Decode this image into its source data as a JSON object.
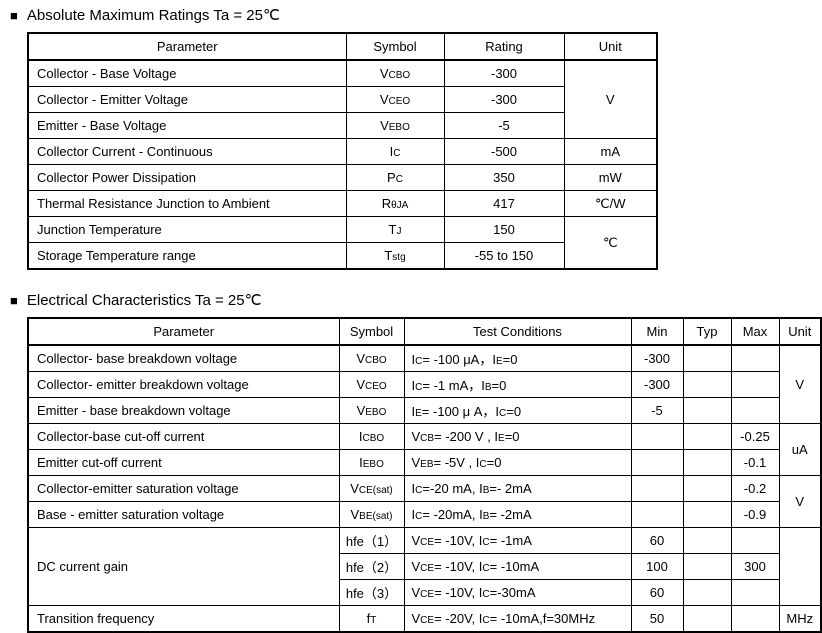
{
  "sections": {
    "abs": {
      "marker": "■",
      "title": "Absolute Maximum Ratings Ta = 25℃",
      "headers": {
        "parameter": "Parameter",
        "symbol": "Symbol",
        "rating": "Rating",
        "unit": "Unit"
      },
      "rows": [
        {
          "parameter": "Collector - Base Voltage",
          "symbol": [
            {
              "t": "V"
            },
            {
              "t": "CBO",
              "sub": true
            }
          ],
          "rating": "-300",
          "unit": "V"
        },
        {
          "parameter": "Collector - Emitter Voltage",
          "symbol": [
            {
              "t": "V"
            },
            {
              "t": "CEO",
              "sub": true
            }
          ],
          "rating": "-300"
        },
        {
          "parameter": "Emitter - Base Voltage",
          "symbol": [
            {
              "t": "V"
            },
            {
              "t": "EBO",
              "sub": true
            }
          ],
          "rating": "-5"
        },
        {
          "parameter": "Collector Current - Continuous",
          "symbol": [
            {
              "t": "I"
            },
            {
              "t": "C",
              "sub": true
            }
          ],
          "rating": "-500",
          "unit": "mA"
        },
        {
          "parameter": "Collector Power Dissipation",
          "symbol": [
            {
              "t": "P"
            },
            {
              "t": "C",
              "sub": true
            }
          ],
          "rating": "350",
          "unit": "mW"
        },
        {
          "parameter": "Thermal Resistance Junction to Ambient",
          "symbol": [
            {
              "t": "R"
            },
            {
              "t": "θJA",
              "sub": true
            }
          ],
          "rating": "417",
          "unit": "℃/W"
        },
        {
          "parameter": "Junction Temperature",
          "symbol": [
            {
              "t": "T"
            },
            {
              "t": "J",
              "sub": true
            }
          ],
          "rating": "150",
          "unit": "℃"
        },
        {
          "parameter": "Storage Temperature range",
          "symbol": [
            {
              "t": "T"
            },
            {
              "t": "stg",
              "sub": true
            }
          ],
          "rating": "-55 to 150"
        }
      ]
    },
    "elec": {
      "marker": "■",
      "title": "Electrical Characteristics Ta = 25℃",
      "headers": {
        "parameter": "Parameter",
        "symbol": "Symbol",
        "conditions": "Test Conditions",
        "min": "Min",
        "typ": "Typ",
        "max": "Max",
        "unit": "Unit"
      },
      "rows": [
        {
          "parameter": "Collector- base breakdown voltage",
          "symbol": [
            {
              "t": "V"
            },
            {
              "t": "CBO",
              "sub": true
            }
          ],
          "conditions": [
            {
              "t": "I"
            },
            {
              "t": "C",
              "sub": true
            },
            {
              "t": "= -100 μA，I"
            },
            {
              "t": "E",
              "sub": true
            },
            {
              "t": "=0"
            }
          ],
          "min": "-300",
          "typ": "",
          "max": "",
          "unit": "V"
        },
        {
          "parameter": "Collector- emitter breakdown voltage",
          "symbol": [
            {
              "t": "V"
            },
            {
              "t": "CEO",
              "sub": true
            }
          ],
          "conditions": [
            {
              "t": "I"
            },
            {
              "t": "C",
              "sub": true
            },
            {
              "t": "= -1 mA，I"
            },
            {
              "t": "B",
              "sub": true
            },
            {
              "t": "=0"
            }
          ],
          "min": "-300",
          "typ": "",
          "max": ""
        },
        {
          "parameter": "Emitter - base breakdown voltage",
          "symbol": [
            {
              "t": "V"
            },
            {
              "t": "EBO",
              "sub": true
            }
          ],
          "conditions": [
            {
              "t": "I"
            },
            {
              "t": "E",
              "sub": true
            },
            {
              "t": "= -100 μ A，I"
            },
            {
              "t": "C",
              "sub": true
            },
            {
              "t": "=0"
            }
          ],
          "min": "-5",
          "typ": "",
          "max": ""
        },
        {
          "parameter": "Collector-base cut-off current",
          "symbol": [
            {
              "t": "I"
            },
            {
              "t": "CBO",
              "sub": true
            }
          ],
          "conditions": [
            {
              "t": "V"
            },
            {
              "t": "CB",
              "sub": true
            },
            {
              "t": "= -200 V , I"
            },
            {
              "t": "E",
              "sub": true
            },
            {
              "t": "=0"
            }
          ],
          "min": "",
          "typ": "",
          "max": "-0.25",
          "unit": "uA"
        },
        {
          "parameter": "Emitter cut-off current",
          "symbol": [
            {
              "t": "I"
            },
            {
              "t": "EBO",
              "sub": true
            }
          ],
          "conditions": [
            {
              "t": "V"
            },
            {
              "t": "EB",
              "sub": true
            },
            {
              "t": "= -5V , I"
            },
            {
              "t": "C",
              "sub": true
            },
            {
              "t": "=0"
            }
          ],
          "min": "",
          "typ": "",
          "max": "-0.1"
        },
        {
          "parameter": "Collector-emitter saturation voltage",
          "symbol": [
            {
              "t": "V"
            },
            {
              "t": "CE(sat)",
              "sub": true
            }
          ],
          "conditions": [
            {
              "t": "I"
            },
            {
              "t": "C",
              "sub": true
            },
            {
              "t": "=-20 mA, I"
            },
            {
              "t": "B",
              "sub": true
            },
            {
              "t": "=- 2mA"
            }
          ],
          "min": "",
          "typ": "",
          "max": "-0.2",
          "unit": "V"
        },
        {
          "parameter": "Base - emitter saturation voltage",
          "symbol": [
            {
              "t": "V"
            },
            {
              "t": "BE(sat)",
              "sub": true
            }
          ],
          "conditions": [
            {
              "t": "I"
            },
            {
              "t": "C",
              "sub": true
            },
            {
              "t": "= -20mA, I"
            },
            {
              "t": "B",
              "sub": true
            },
            {
              "t": "= -2mA"
            }
          ],
          "min": "",
          "typ": "",
          "max": "-0.9"
        },
        {
          "parameter": "DC current gain",
          "symbol": [
            {
              "t": "hfe（1）"
            }
          ],
          "conditions": [
            {
              "t": "V"
            },
            {
              "t": "CE",
              "sub": true
            },
            {
              "t": "= -10V, I"
            },
            {
              "t": "C",
              "sub": true
            },
            {
              "t": "= -1mA"
            }
          ],
          "min": "60",
          "typ": "",
          "max": "",
          "unit": ""
        },
        {
          "symbol": [
            {
              "t": "hfe（2）"
            }
          ],
          "conditions": [
            {
              "t": "V"
            },
            {
              "t": "CE",
              "sub": true
            },
            {
              "t": "= -10V, I"
            },
            {
              "t": "C",
              "sub": true
            },
            {
              "t": "= -10mA"
            }
          ],
          "min": "100",
          "typ": "",
          "max": "300"
        },
        {
          "symbol": [
            {
              "t": "hfe（3）"
            }
          ],
          "conditions": [
            {
              "t": "V"
            },
            {
              "t": "CE",
              "sub": true
            },
            {
              "t": "= -10V, I"
            },
            {
              "t": "C",
              "sub": true
            },
            {
              "t": "=-30mA"
            }
          ],
          "min": "60",
          "typ": "",
          "max": ""
        },
        {
          "parameter": "Transition frequency",
          "symbol": [
            {
              "t": "f"
            },
            {
              "t": "T",
              "sub": true
            }
          ],
          "conditions": [
            {
              "t": "V"
            },
            {
              "t": "CE",
              "sub": true
            },
            {
              "t": "= -20V, I"
            },
            {
              "t": "C",
              "sub": true
            },
            {
              "t": "= -10mA,f=30MHz"
            }
          ],
          "min": "50",
          "typ": "",
          "max": "",
          "unit": "MHz"
        }
      ]
    }
  }
}
